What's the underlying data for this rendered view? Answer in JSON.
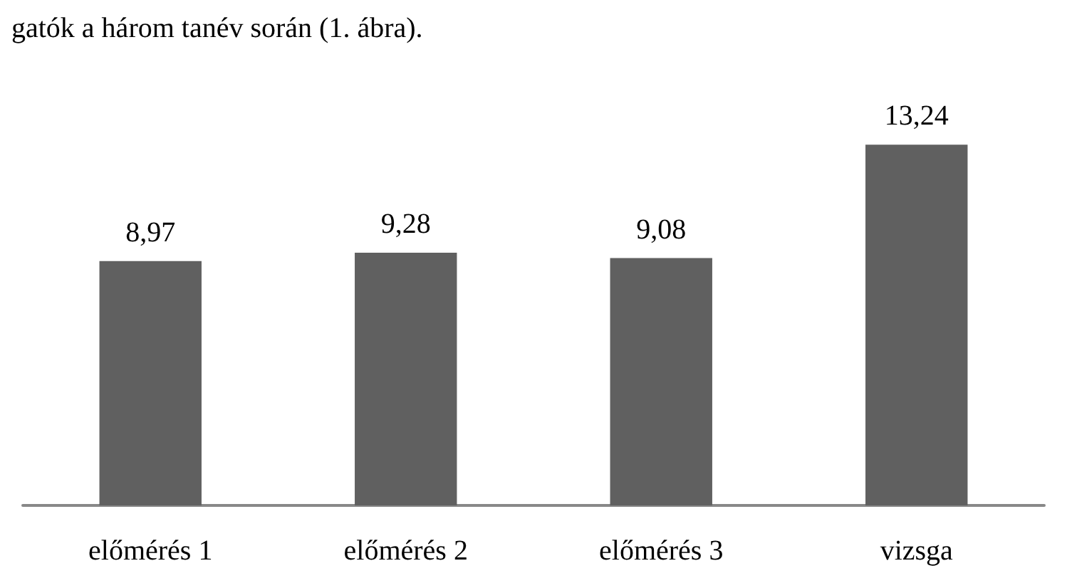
{
  "chart_data": {
    "type": "bar",
    "annotations": [
      "gatók a három tanév során (1. ábra)."
    ],
    "categories": [
      "előmérés 1",
      "előmérés 2",
      "előmérés 3",
      "vizsga"
    ],
    "values": [
      8.97,
      9.28,
      9.08,
      13.24
    ],
    "value_labels": [
      "8,97",
      "9,28",
      "9,08",
      "13,24"
    ],
    "color": "#606060"
  }
}
